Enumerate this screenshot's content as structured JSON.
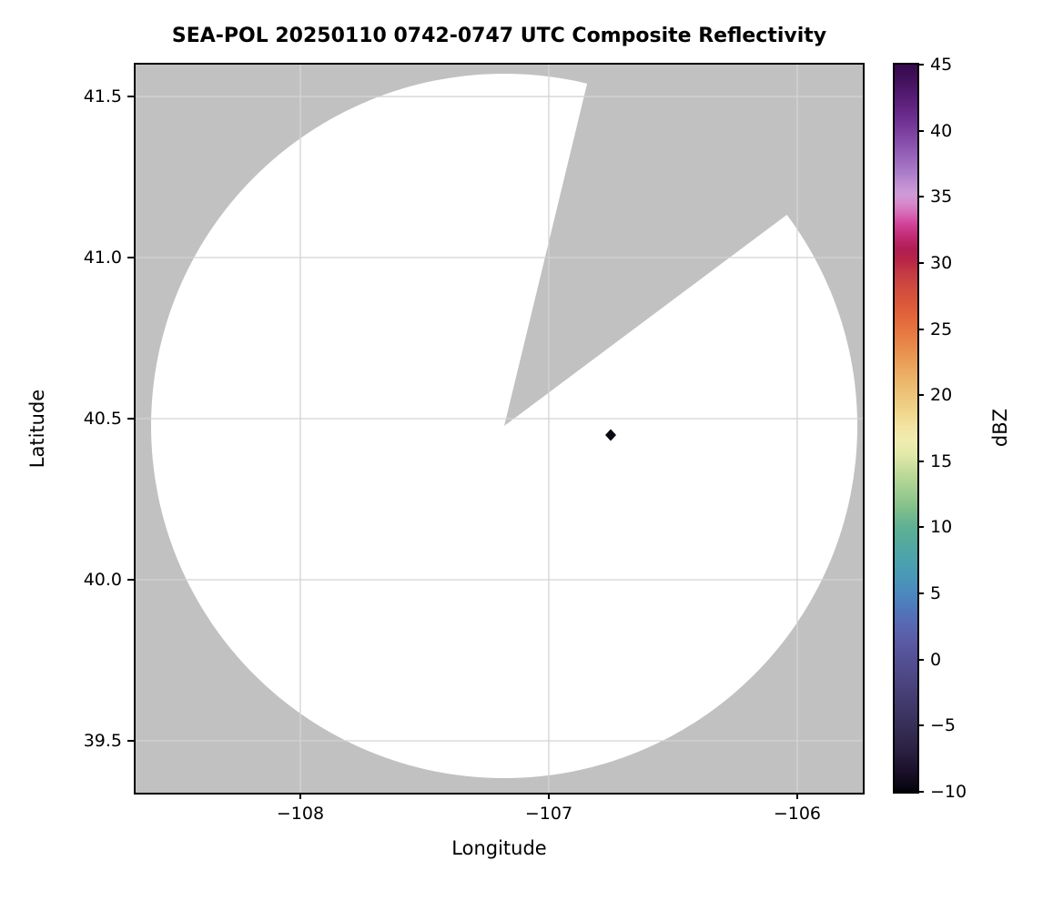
{
  "title": "SEA-POL 20250110 0742-0747 UTC Composite Reflectivity",
  "axes": {
    "xlabel": "Longitude",
    "ylabel": "Latitude",
    "x_tick_labels": [
      "−108",
      "−107",
      "−106"
    ],
    "y_tick_labels": [
      "41.5",
      "41.0",
      "40.5",
      "40.0",
      "39.5"
    ]
  },
  "colorbar": {
    "label": "dBZ",
    "min": -10,
    "max": 45,
    "tick_labels": [
      "45",
      "40",
      "35",
      "30",
      "25",
      "20",
      "15",
      "10",
      "5",
      "0",
      "−5",
      "−10"
    ],
    "stops": [
      {
        "v": 45.0,
        "c": "#36094e"
      },
      {
        "v": 44.0,
        "c": "#401059"
      },
      {
        "v": 42.5,
        "c": "#571d75"
      },
      {
        "v": 41.0,
        "c": "#6c2d8e"
      },
      {
        "v": 39.5,
        "c": "#8147a4"
      },
      {
        "v": 38.0,
        "c": "#9865ba"
      },
      {
        "v": 36.8,
        "c": "#ab7dc9"
      },
      {
        "v": 36.0,
        "c": "#bf8ed2"
      },
      {
        "v": 35.2,
        "c": "#cf9ad8"
      },
      {
        "v": 34.5,
        "c": "#d689cb"
      },
      {
        "v": 33.8,
        "c": "#d76cb7"
      },
      {
        "v": 33.0,
        "c": "#d1459c"
      },
      {
        "v": 32.0,
        "c": "#c22a74"
      },
      {
        "v": 31.0,
        "c": "#b01d52"
      },
      {
        "v": 30.2,
        "c": "#b82446"
      },
      {
        "v": 29.3,
        "c": "#c33944"
      },
      {
        "v": 28.2,
        "c": "#cf4a3f"
      },
      {
        "v": 27.0,
        "c": "#da573a"
      },
      {
        "v": 25.8,
        "c": "#e2673c"
      },
      {
        "v": 24.5,
        "c": "#e77c44"
      },
      {
        "v": 23.2,
        "c": "#e9924f"
      },
      {
        "v": 21.8,
        "c": "#ebaa61"
      },
      {
        "v": 20.3,
        "c": "#edc076"
      },
      {
        "v": 18.8,
        "c": "#f0d48b"
      },
      {
        "v": 17.6,
        "c": "#f2e4a2"
      },
      {
        "v": 16.6,
        "c": "#f0ecb0"
      },
      {
        "v": 15.5,
        "c": "#e2e9a9"
      },
      {
        "v": 14.3,
        "c": "#c4dc9b"
      },
      {
        "v": 13.0,
        "c": "#a5d091"
      },
      {
        "v": 11.5,
        "c": "#82c08a"
      },
      {
        "v": 10.2,
        "c": "#62b292"
      },
      {
        "v": 9.0,
        "c": "#55aa9c"
      },
      {
        "v": 7.6,
        "c": "#4ca3ab"
      },
      {
        "v": 6.2,
        "c": "#4a97b8"
      },
      {
        "v": 5.0,
        "c": "#4b88bf"
      },
      {
        "v": 3.6,
        "c": "#5174b9"
      },
      {
        "v": 2.2,
        "c": "#5a63ae"
      },
      {
        "v": 0.8,
        "c": "#58559f"
      },
      {
        "v": -0.6,
        "c": "#514c8d"
      },
      {
        "v": -2.2,
        "c": "#48417a"
      },
      {
        "v": -3.8,
        "c": "#3e3766"
      },
      {
        "v": -5.4,
        "c": "#342c53"
      },
      {
        "v": -7.0,
        "c": "#291f3f"
      },
      {
        "v": -8.6,
        "c": "#190f28"
      },
      {
        "v": -9.6,
        "c": "#0a0613"
      },
      {
        "v": -10.0,
        "c": "#020104"
      }
    ]
  },
  "chart_data": {
    "type": "heatmap",
    "title": "SEA-POL 20250110 0742-0747 UTC Composite Reflectivity",
    "xlabel": "Longitude",
    "ylabel": "Latitude",
    "xlim": [
      -108.663,
      -105.736
    ],
    "ylim": [
      39.339,
      41.599
    ],
    "x_ticks": [
      -108,
      -107,
      -106
    ],
    "y_ticks": [
      41.5,
      41.0,
      40.5,
      40.0,
      39.5
    ],
    "grid": true,
    "legend_position": "right colorbar",
    "colorbar_label": "dBZ",
    "colorbar_range": [
      -10,
      45
    ],
    "colorbar_ticks": [
      45,
      40,
      35,
      30,
      25,
      20,
      15,
      10,
      5,
      0,
      -5,
      -10
    ],
    "radar_center": {
      "lon": -107.18,
      "lat": 40.48
    },
    "scan_area": "white filled circle (radar coverage, no echoes) on gray no-data background",
    "coverage_radius_deg": {
      "lon": 1.42,
      "lat": 1.09
    },
    "no_data_sector_azimuth_deg": [
      13.5,
      54
    ],
    "echoes": [
      {
        "lon": -106.75,
        "lat": 40.44,
        "dbz_approx": -10,
        "note": "single small dark speck"
      }
    ]
  },
  "colors": {
    "no_data_gray": "#c1c1c1",
    "scan_area_white": "#ffffff",
    "grid_line": "#d4d4d4",
    "axis_black": "#000000",
    "echo_dot": "#0a0a12"
  }
}
